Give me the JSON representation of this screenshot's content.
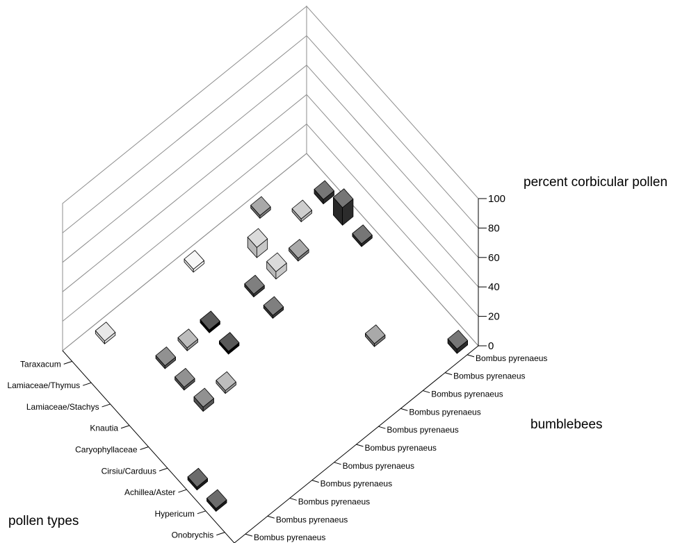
{
  "chart_data": {
    "type": "bar3d",
    "title": "",
    "zlabel": "percent corbicular pollen",
    "xlabel": "pollen types",
    "ylabel": "bumblebees",
    "zlim": [
      0,
      100
    ],
    "z_ticks": [
      "0",
      "20",
      "40",
      "60",
      "80",
      "100"
    ],
    "grid": true,
    "pollen_types": [
      "Onobrychis",
      "Hypericum",
      "Achillea/Aster",
      "Cirsiu/Carduus",
      "Caryophyllaceae",
      "Knautia",
      "Lamiaceae/Stachys",
      "Lamiaceae/Thymus",
      "Taraxacum"
    ],
    "bumblebees": [
      "Bombus pyrenaeus",
      "Bombus pyrenaeus",
      "Bombus pyrenaeus",
      "Bombus pyrenaeus",
      "Bombus pyrenaeus",
      "Bombus pyrenaeus",
      "Bombus pyrenaeus",
      "Bombus pyrenaeus",
      "Bombus pyrenaeus",
      "Bombus pyrenaeus",
      "Bombus pyrenaeus"
    ],
    "colors": [
      "#1c1c1c",
      "#dcdcdc",
      "#565656",
      "#9a9a9a",
      "#000000",
      "#f2f2f2",
      "#3a3a3a",
      "#c8c8c8",
      "#7a7a7a",
      "#b4b4b4",
      "#2c2c2c"
    ],
    "values": [
      [
        0,
        0,
        0,
        0,
        0,
        0,
        0,
        0,
        0,
        0,
        3
      ],
      [
        2,
        0,
        0,
        0,
        0,
        0,
        0,
        0,
        0,
        0,
        0
      ],
      [
        2,
        0,
        0,
        0,
        0,
        0,
        0,
        0,
        2,
        0,
        0
      ],
      [
        0,
        0,
        0,
        0,
        0,
        0,
        0,
        0,
        0,
        0,
        0
      ],
      [
        0,
        0,
        3,
        2,
        0,
        0,
        0,
        0,
        0,
        0,
        0
      ],
      [
        0,
        0,
        2,
        0,
        2,
        0,
        2,
        0,
        0,
        0,
        2
      ],
      [
        0,
        0,
        2,
        2,
        2,
        0,
        2,
        5,
        2,
        0,
        12
      ],
      [
        0,
        0,
        0,
        0,
        0,
        0,
        0,
        7,
        0,
        2,
        3
      ],
      [
        0,
        2,
        0,
        0,
        0,
        2,
        0,
        0,
        2,
        0,
        0
      ]
    ]
  }
}
